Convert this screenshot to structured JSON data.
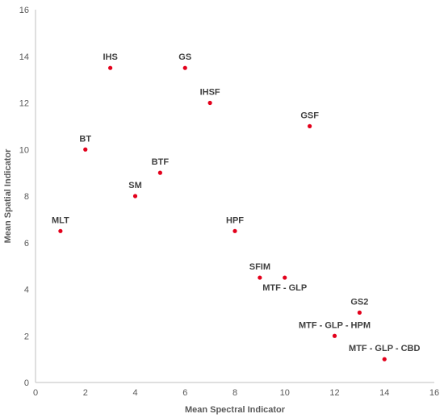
{
  "chart_data": {
    "type": "scatter",
    "title": "",
    "xlabel": "Mean Spectral Indicator",
    "ylabel": "Mean Spatial Indicator",
    "xlim": [
      0,
      16
    ],
    "ylim": [
      0,
      16
    ],
    "xticks": [
      0,
      2,
      4,
      6,
      8,
      10,
      12,
      14,
      16
    ],
    "yticks": [
      0,
      2,
      4,
      6,
      8,
      10,
      12,
      14,
      16
    ],
    "grid": "none",
    "marker_color": "#e3001b",
    "points": [
      {
        "label": "MLT",
        "x": 1,
        "y": 6.5
      },
      {
        "label": "BT",
        "x": 2,
        "y": 10
      },
      {
        "label": "IHS",
        "x": 3,
        "y": 13.5
      },
      {
        "label": "SM",
        "x": 4,
        "y": 8
      },
      {
        "label": "BTF",
        "x": 5,
        "y": 9
      },
      {
        "label": "GS",
        "x": 6,
        "y": 13.5
      },
      {
        "label": "IHSF",
        "x": 7,
        "y": 12
      },
      {
        "label": "HPF",
        "x": 8,
        "y": 6.5
      },
      {
        "label": "SFIM",
        "x": 9,
        "y": 4.5
      },
      {
        "label": "MTF - GLP",
        "x": 10,
        "y": 4.5
      },
      {
        "label": "GSF",
        "x": 11,
        "y": 11
      },
      {
        "label": "MTF - GLP - HPM",
        "x": 12,
        "y": 2
      },
      {
        "label": "GS2",
        "x": 13,
        "y": 3
      },
      {
        "label": "MTF - GLP - CBD",
        "x": 14,
        "y": 1
      }
    ]
  }
}
